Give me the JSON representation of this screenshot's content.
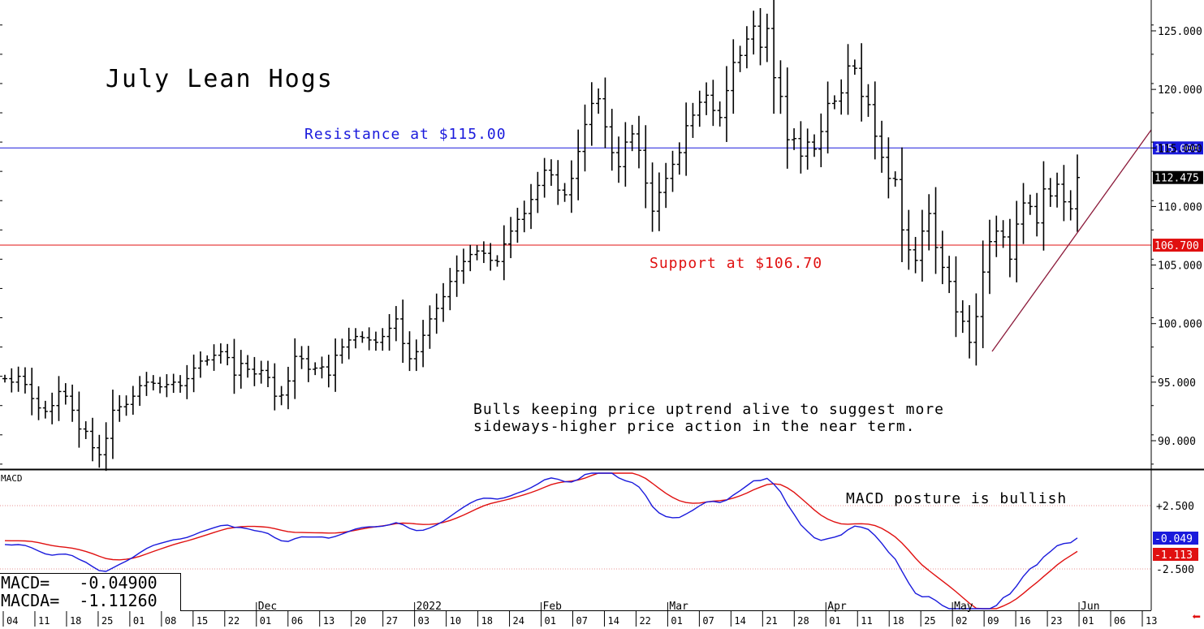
{
  "title": "July Lean Hogs",
  "annotations": {
    "resistance": "Resistance at $115.00",
    "support": "Support at $106.70",
    "note_line1": "Bulls keeping price uptrend alive to suggest more",
    "note_line2": "sideways-higher price action in the near term.",
    "macd_note": "MACD posture is bullish"
  },
  "macd_panel": {
    "label": "MACD",
    "readout_macd": "MACD=   -0.04900",
    "readout_macda": "MACDA=  -1.11260",
    "ticks": [
      "+2.500",
      "-2.500"
    ],
    "macd_tag": "-0.049",
    "macda_tag": "-1.113"
  },
  "colors": {
    "resistance": "#1a1adc",
    "support": "#e01010",
    "macd": "#1a1adc",
    "macda": "#e01010",
    "trendline": "#8b1a3a",
    "bars": "#000000"
  },
  "chart_data": {
    "type": "bar",
    "title": "July Lean Hogs",
    "price_axis": {
      "range": [
        87.5,
        127.5
      ],
      "ticks": [
        "125.000",
        "120.000",
        "115.000",
        "110.000",
        "105.000",
        "100.000",
        "95.000",
        "90.000"
      ],
      "tick_values": [
        125,
        120,
        115,
        110,
        105,
        100,
        95,
        90
      ]
    },
    "horizontal_lines": [
      {
        "name": "Resistance",
        "value": 115.0,
        "tag": "115.000"
      },
      {
        "name": "Support",
        "value": 106.7,
        "tag": "106.700"
      }
    ],
    "last_price_tag": "112.475",
    "last_price": 112.475,
    "trendline": {
      "from": {
        "date": "May 12",
        "price": 97.8
      },
      "to": {
        "date": "Jun 07",
        "price": 116.5
      }
    },
    "x_axis": {
      "day_labels": [
        "04",
        "11",
        "18",
        "25",
        "01",
        "08",
        "15",
        "22",
        "01",
        "06",
        "13",
        "20",
        "27",
        "03",
        "10",
        "18",
        "24",
        "01",
        "07",
        "14",
        "22",
        "01",
        "07",
        "14",
        "21",
        "28",
        "01",
        "11",
        "18",
        "25",
        "02",
        "09",
        "16",
        "23",
        "01",
        "06",
        "13"
      ],
      "month_labels": [
        {
          "label": "Dec",
          "at_index": 8
        },
        {
          "label": "2022",
          "at_index": 13
        },
        {
          "label": "Feb",
          "at_index": 17
        },
        {
          "label": "Mar",
          "at_index": 21
        },
        {
          "label": "Apr",
          "at_index": 26
        },
        {
          "label": "May",
          "at_index": 30
        },
        {
          "label": "Jun",
          "at_index": 34
        }
      ]
    },
    "closes": [
      95.3,
      95.0,
      95.5,
      94.8,
      93.6,
      92.8,
      92.5,
      93.0,
      94.2,
      93.8,
      92.6,
      91.0,
      90.8,
      89.4,
      88.8,
      90.2,
      92.6,
      92.9,
      93.1,
      93.8,
      94.7,
      95.0,
      94.9,
      94.6,
      94.8,
      95.0,
      94.7,
      95.3,
      96.2,
      96.8,
      96.9,
      97.3,
      97.6,
      97.1,
      95.6,
      96.6,
      96.1,
      95.7,
      96.0,
      95.4,
      93.8,
      93.9,
      95.1,
      97.2,
      97.0,
      96.1,
      96.2,
      96.3,
      95.6,
      97.3,
      98.0,
      98.6,
      98.9,
      98.8,
      98.6,
      98.4,
      98.9,
      99.6,
      100.4,
      98.3,
      97.0,
      97.6,
      99.0,
      100.4,
      101.3,
      102.3,
      103.6,
      104.5,
      105.3,
      105.9,
      106.2,
      106.0,
      105.4,
      105.3,
      106.8,
      107.9,
      108.9,
      109.4,
      110.6,
      111.8,
      113.1,
      112.7,
      111.4,
      111.0,
      112.4,
      114.7,
      117.0,
      118.8,
      119.2,
      116.8,
      114.6,
      113.4,
      115.5,
      116.2,
      114.8,
      112.0,
      109.6,
      111.2,
      112.4,
      113.6,
      114.6,
      116.9,
      117.8,
      118.9,
      119.5,
      118.2,
      117.6,
      119.9,
      122.3,
      122.9,
      124.3,
      125.4,
      123.6,
      125.2,
      121.0,
      119.4,
      115.7,
      115.8,
      114.3,
      115.5,
      114.9,
      116.4,
      118.8,
      119.0,
      119.7,
      122.0,
      121.8,
      119.4,
      118.7,
      116.0,
      114.2,
      112.4,
      112.3,
      108.0,
      106.3,
      105.4,
      107.9,
      109.4,
      106.5,
      104.8,
      103.6,
      101.0,
      100.2,
      98.4,
      100.6,
      104.4,
      107.0,
      107.9,
      107.4,
      105.5,
      108.5,
      110.3,
      110.0,
      108.6,
      111.5,
      110.9,
      111.9,
      110.4,
      109.8,
      112.475
    ],
    "macd": "MACD line starts near +0.5, dips near -0.6 in late Nov, rises to about +3.6 in mid Feb, falls to about -4.4 in mid May, and recovers to -0.049",
    "macda": "signal line tracks MACD with lag, ending at -1.113"
  }
}
